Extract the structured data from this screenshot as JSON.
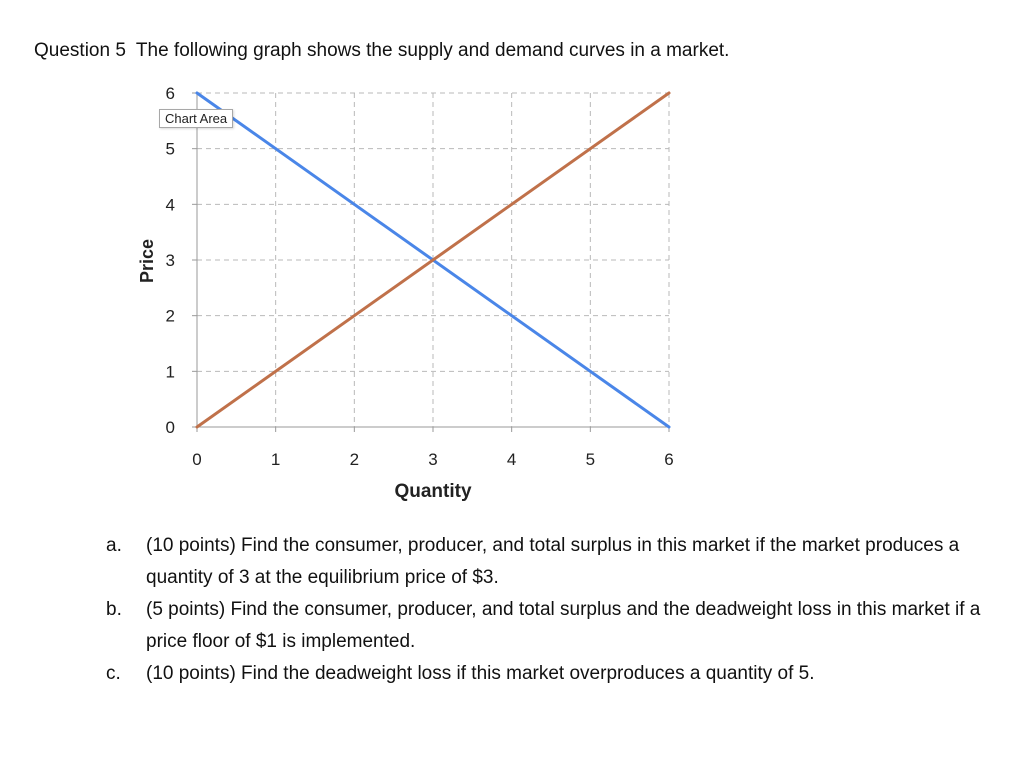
{
  "question": {
    "number": "Question 5",
    "prompt": "The following graph shows the supply and demand curves in a market."
  },
  "chart_area_tooltip": "Chart Area",
  "chart_data": {
    "type": "line",
    "xlabel": "Quantity",
    "ylabel": "Price",
    "xlim": [
      0,
      6
    ],
    "ylim": [
      0,
      6
    ],
    "x_ticks": [
      "0",
      "1",
      "2",
      "3",
      "4",
      "5",
      "6"
    ],
    "y_ticks": [
      "0",
      "1",
      "2",
      "3",
      "4",
      "5",
      "6"
    ],
    "grid": "dashed",
    "legend": "none",
    "series": [
      {
        "color": "#4a86e8",
        "points": [
          [
            0,
            6
          ],
          [
            6,
            0
          ]
        ]
      },
      {
        "color": "#c0714a",
        "points": [
          [
            0,
            0
          ],
          [
            6,
            6
          ]
        ]
      }
    ]
  },
  "items": [
    {
      "marker": "a.",
      "text": "(10 points) Find the consumer, producer, and total surplus in this market if the market produces a quantity of 3 at the equilibrium price of $3."
    },
    {
      "marker": "b.",
      "text": "(5 points) Find the consumer, producer, and total surplus and the deadweight loss in this market if a price floor of $1 is implemented."
    },
    {
      "marker": "c.",
      "text": "(10 points) Find the deadweight loss if this market overproduces a quantity of 5."
    }
  ]
}
